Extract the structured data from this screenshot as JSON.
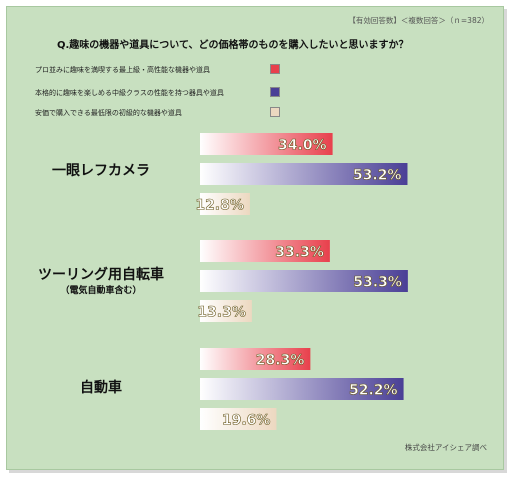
{
  "header": {
    "note": "【有効回答数】＜複数回答＞（ｎ=382）",
    "question": "Q.趣味の機器や道具について、どの価格帯のものを購入したいと思いますか？"
  },
  "footer": {
    "source": "株式会社アイシェア調べ"
  },
  "colors": {
    "high_end": "#e8404c",
    "mid_class": "#4a3f96",
    "low_end": "#ecd8c0",
    "background": "#c8e0c0"
  },
  "chart_data": {
    "type": "bar",
    "orientation": "horizontal",
    "title": "Q.趣味の機器や道具について、どの価格帯のものを購入したいと思いますか？",
    "legend_placement": "top-left",
    "value_unit": "%",
    "xlim": [
      0,
      100
    ],
    "grid": false,
    "categories": [
      {
        "name": "一眼レフカメラ",
        "sub": ""
      },
      {
        "name": "ツーリング用自転車",
        "sub": "（電気自動車含む）"
      },
      {
        "name": "自動車",
        "sub": ""
      }
    ],
    "series": [
      {
        "name": "プロ並みに趣味を満喫する最上級・高性能な機器や道具",
        "color": "#e8404c",
        "values": [
          34.0,
          33.3,
          28.3
        ],
        "labels": [
          "34.0%",
          "33.3%",
          "28.3%"
        ]
      },
      {
        "name": "本格的に趣味を楽しめる中級クラスの性能を持つ器具や道具",
        "color": "#4a3f96",
        "values": [
          53.2,
          53.3,
          52.2
        ],
        "labels": [
          "53.2%",
          "53.3%",
          "52.2%"
        ]
      },
      {
        "name": "安価で購入できる最低限の初級的な機器や道具",
        "color": "#ecd8c0",
        "values": [
          12.8,
          13.3,
          19.6
        ],
        "labels": [
          "12.8%",
          "13.3%",
          "19.6%"
        ]
      }
    ]
  }
}
